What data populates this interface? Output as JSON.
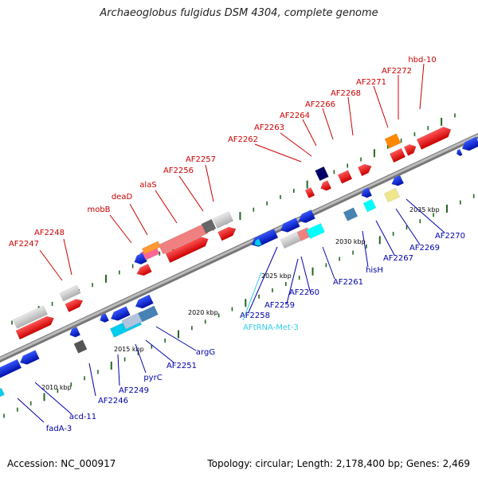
{
  "title": "Archaeoglobus fulgidus DSM 4304, complete genome",
  "footer": {
    "accession": "Accession: NC_000917",
    "topology": "Topology: circular; Length: 2,178,400 bp; Genes: 2,469"
  },
  "kbp_marks": [
    "2010 kbp",
    "2015 kbp",
    "2020 kbp",
    "2025 kbp",
    "2030 kbp",
    "2035 kbp"
  ],
  "top_labels": [
    "AF2247",
    "AF2248",
    "mobB",
    "deaD",
    "alaS",
    "AF2256",
    "AF2257",
    "AF2262",
    "AF2263",
    "AF2264",
    "AF2266",
    "AF2268",
    "AF2271",
    "AF2272",
    "hbd-10"
  ],
  "bottom_labels": [
    "fadA-3",
    "acd-11",
    "AF2246",
    "AF2249",
    "pyrC",
    "AF2251",
    "argG",
    "AF2258",
    "AF2259",
    "AF2260",
    "AF2261",
    "hisH",
    "AF2267",
    "AF2269",
    "AF2270"
  ],
  "trna_label": "AFtRNA-Met-3",
  "colors": {
    "top_label": "#cc0000",
    "bottom_label": "#0000aa",
    "trna_label": "#33ccee",
    "gene_red": "#ee0000",
    "gene_blue": "#0022dd",
    "tick": "#226622",
    "backbone": "#888888"
  }
}
